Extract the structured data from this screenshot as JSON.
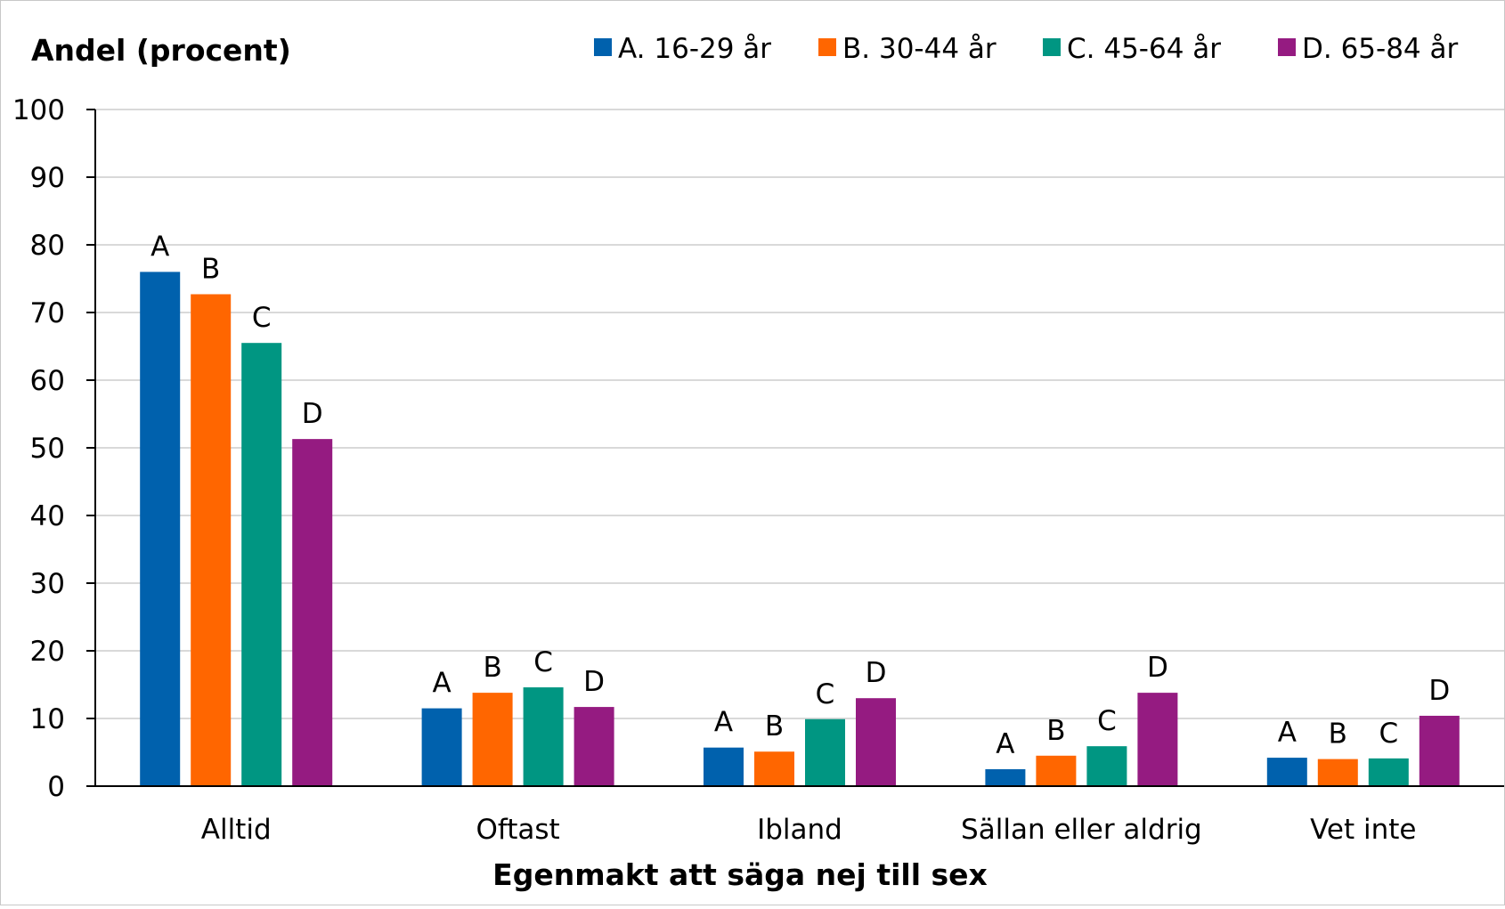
{
  "chart_data": {
    "type": "bar",
    "title": "",
    "ylabel": "Andel (procent)",
    "xlabel": "Egenmakt att säga nej till sex",
    "ylim": [
      0,
      100
    ],
    "yticks": [
      "0",
      "10",
      "20",
      "30",
      "40",
      "50",
      "60",
      "70",
      "80",
      "90",
      "100"
    ],
    "grid": true,
    "legend_position": "top-right",
    "categories": [
      "Alltid",
      "Oftast",
      "Ibland",
      "Sällan eller aldrig",
      "Vet inte"
    ],
    "series": [
      {
        "name": "A. 16-29 år",
        "label": "A",
        "color": "#0061AD",
        "values": [
          76,
          11.5,
          5.7,
          2.5,
          4.2
        ]
      },
      {
        "name": "B. 30-44 år",
        "label": "B",
        "color": "#FF6600",
        "values": [
          72.7,
          13.8,
          5.1,
          4.5,
          4.0
        ]
      },
      {
        "name": "C. 45-64 år",
        "label": "C",
        "color": "#009682",
        "values": [
          65.5,
          14.6,
          9.9,
          5.9,
          4.1
        ]
      },
      {
        "name": "D. 65-84 år",
        "label": "D",
        "color": "#951B81",
        "values": [
          51.3,
          11.7,
          13.0,
          13.8,
          10.4
        ]
      }
    ]
  }
}
